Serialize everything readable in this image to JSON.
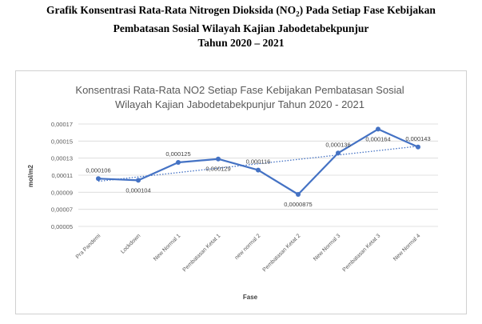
{
  "document_title": {
    "line1_pre": "Grafik Konsentrasi Rata-Rata Nitrogen Dioksida (NO",
    "line1_sub": "2",
    "line1_post": ") Pada Setiap Fase Kebijakan",
    "line2": "Pembatasan Sosial Wilayah Kajian Jabodetabekpunjur",
    "line3": "Tahun 2020 – 2021"
  },
  "chart_data": {
    "type": "line",
    "title_lines": [
      "Konsentrasi Rata-Rata NO2 Setiap Fase Kebijakan Pembatasan Sosial",
      "Wilayah Kajian Jabodetabekpunjur Tahun 2020 - 2021"
    ],
    "xlabel": "Fase",
    "ylabel": "mol/m2",
    "categories": [
      "Pra Pandemi",
      "Lockdown",
      "New Normal 1",
      "Pembatasan Ketat 1",
      "new normal 2",
      "Pembatasan Ketat 2",
      "New Normal 3",
      "Pembatasan Ketat 3",
      "New Normal 4"
    ],
    "series": [
      {
        "values": [
          0.000106,
          0.000104,
          0.000125,
          0.000129,
          0.000116,
          8.75e-05,
          0.000136,
          0.000164,
          0.000143
        ],
        "data_labels": [
          "0,000106",
          "0,000104",
          "0,000125",
          "0,000129",
          "0,000116",
          "0,0000875",
          "0,000136",
          "0,000164",
          "0,000143"
        ],
        "color": "#4472c4",
        "trendline": "linear (dotted)"
      }
    ],
    "ylim": [
      5e-05,
      0.00017
    ],
    "yticks": [
      5e-05,
      7e-05,
      9e-05,
      0.00011,
      0.00013,
      0.00015,
      0.00017
    ],
    "ytick_labels": [
      "0,00005",
      "0,00007",
      "0,00009",
      "0,00011",
      "0,00013",
      "0,00015",
      "0,00017"
    ],
    "grid": "horizontal",
    "legend": "none"
  }
}
